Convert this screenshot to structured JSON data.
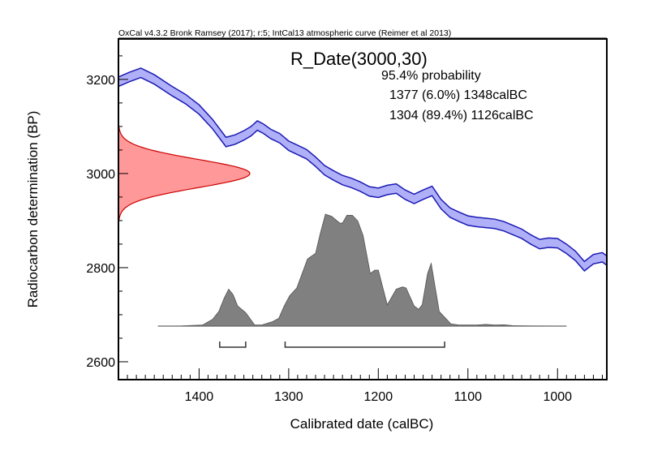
{
  "chart_data": {
    "type": "area",
    "header": "OxCal v4.3.2 Bronk Ramsey (2017); r:5; IntCal13 atmospheric curve (Reimer et al 2013)",
    "title": "R_Date(3000,30)",
    "probability_label": "95.4% probability",
    "ranges": [
      {
        "label": "1377 (6.0%) 1348calBC",
        "from": 1377,
        "to": 1348
      },
      {
        "label": "1304 (89.4%) 1126calBC",
        "from": 1304,
        "to": 1126
      }
    ],
    "xlabel": "Calibrated date (calBC)",
    "ylabel": "Radiocarbon determination (BP)",
    "xlim": [
      1490,
      945
    ],
    "ylim": [
      2562,
      3286
    ],
    "xticks": [
      1400,
      1300,
      1200,
      1100,
      1000
    ],
    "yticks": [
      3200,
      3000,
      2800,
      2600
    ],
    "calibration_curve": {
      "name": "IntCal13",
      "sigma": 10,
      "points": [
        [
          1490,
          3195
        ],
        [
          1478,
          3205
        ],
        [
          1465,
          3214
        ],
        [
          1450,
          3200
        ],
        [
          1430,
          3175
        ],
        [
          1415,
          3158
        ],
        [
          1400,
          3136
        ],
        [
          1385,
          3105
        ],
        [
          1370,
          3067
        ],
        [
          1360,
          3072
        ],
        [
          1350,
          3081
        ],
        [
          1342,
          3090
        ],
        [
          1335,
          3102
        ],
        [
          1328,
          3095
        ],
        [
          1320,
          3084
        ],
        [
          1310,
          3075
        ],
        [
          1300,
          3059
        ],
        [
          1290,
          3050
        ],
        [
          1280,
          3041
        ],
        [
          1270,
          3025
        ],
        [
          1260,
          3007
        ],
        [
          1250,
          2996
        ],
        [
          1240,
          2986
        ],
        [
          1230,
          2980
        ],
        [
          1220,
          2972
        ],
        [
          1210,
          2962
        ],
        [
          1200,
          2959
        ],
        [
          1190,
          2965
        ],
        [
          1180,
          2968
        ],
        [
          1170,
          2955
        ],
        [
          1160,
          2946
        ],
        [
          1150,
          2955
        ],
        [
          1140,
          2963
        ],
        [
          1130,
          2935
        ],
        [
          1120,
          2917
        ],
        [
          1110,
          2908
        ],
        [
          1100,
          2900
        ],
        [
          1090,
          2897
        ],
        [
          1080,
          2895
        ],
        [
          1070,
          2893
        ],
        [
          1060,
          2888
        ],
        [
          1050,
          2880
        ],
        [
          1040,
          2872
        ],
        [
          1030,
          2860
        ],
        [
          1020,
          2850
        ],
        [
          1010,
          2853
        ],
        [
          1000,
          2852
        ],
        [
          990,
          2840
        ],
        [
          980,
          2825
        ],
        [
          970,
          2803
        ],
        [
          960,
          2818
        ],
        [
          950,
          2822
        ],
        [
          945,
          2815
        ]
      ]
    },
    "measurement": {
      "mean": 3000,
      "sd": 30,
      "color": "#ff9999"
    },
    "posterior": {
      "color": "#808080",
      "points": [
        [
          1446,
          0
        ],
        [
          1420,
          0.002
        ],
        [
          1396,
          0.01
        ],
        [
          1385,
          0.06
        ],
        [
          1378,
          0.13
        ],
        [
          1372,
          0.25
        ],
        [
          1367,
          0.33
        ],
        [
          1362,
          0.28
        ],
        [
          1357,
          0.18
        ],
        [
          1348,
          0.12
        ],
        [
          1338,
          0.01
        ],
        [
          1330,
          0.01
        ],
        [
          1318,
          0.04
        ],
        [
          1311,
          0.07
        ],
        [
          1305,
          0.18
        ],
        [
          1299,
          0.27
        ],
        [
          1291,
          0.34
        ],
        [
          1285,
          0.47
        ],
        [
          1279,
          0.6
        ],
        [
          1270,
          0.65
        ],
        [
          1265,
          0.82
        ],
        [
          1259,
          1.0
        ],
        [
          1252,
          0.98
        ],
        [
          1243,
          0.92
        ],
        [
          1240,
          0.92
        ],
        [
          1235,
          0.99
        ],
        [
          1229,
          0.99
        ],
        [
          1223,
          0.94
        ],
        [
          1217,
          0.81
        ],
        [
          1209,
          0.47
        ],
        [
          1204,
          0.5
        ],
        [
          1200,
          0.5
        ],
        [
          1190,
          0.19
        ],
        [
          1180,
          0.33
        ],
        [
          1173,
          0.35
        ],
        [
          1169,
          0.34
        ],
        [
          1160,
          0.18
        ],
        [
          1155,
          0.15
        ],
        [
          1151,
          0.19
        ],
        [
          1145,
          0.47
        ],
        [
          1141,
          0.56
        ],
        [
          1132,
          0.13
        ],
        [
          1119,
          0.02
        ],
        [
          1110,
          0.01
        ],
        [
          1090,
          0.01
        ],
        [
          1080,
          0.015
        ],
        [
          1070,
          0.01
        ],
        [
          1060,
          0.012
        ],
        [
          1050,
          0.004
        ],
        [
          1030,
          0.002
        ],
        [
          990,
          0
        ]
      ]
    },
    "colors": {
      "curve_fill": "#b0b0f8",
      "curve_line": "#1a1ab4",
      "gauss_line": "#cc0000",
      "posterior_line": "#505050"
    }
  }
}
